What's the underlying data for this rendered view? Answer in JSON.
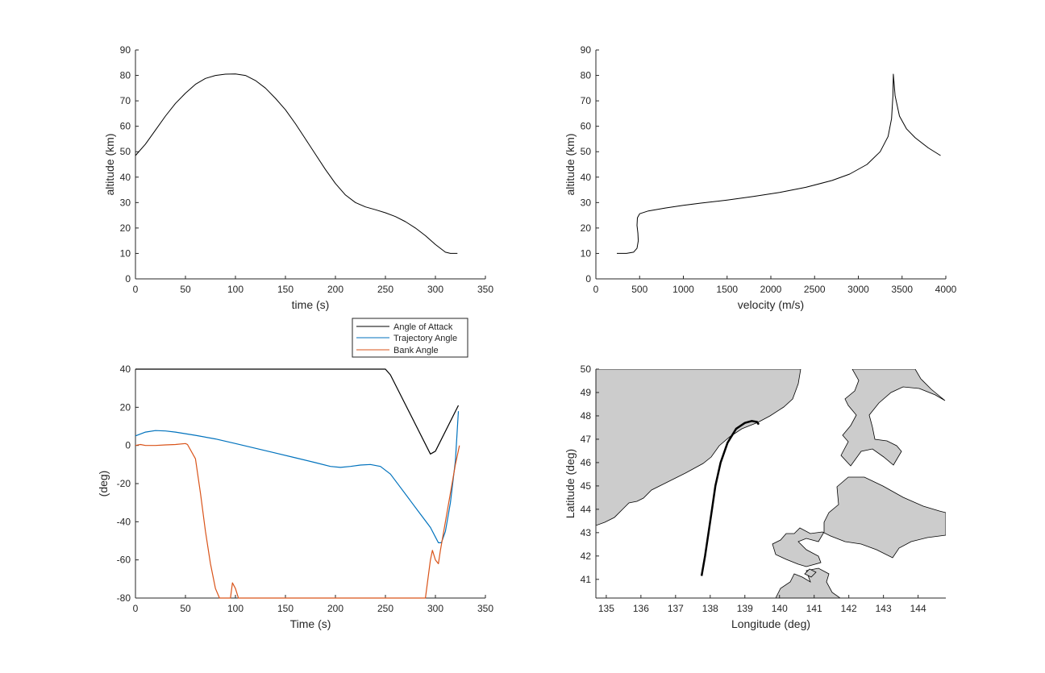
{
  "chart_data": [
    {
      "type": "line",
      "xlabel": "time (s)",
      "ylabel": "altitude (km)",
      "xlim": [
        0,
        350
      ],
      "ylim": [
        0,
        90
      ],
      "xticks": [
        "0",
        "50",
        "100",
        "150",
        "200",
        "250",
        "300",
        "350"
      ],
      "yticks": [
        "0",
        "10",
        "20",
        "30",
        "40",
        "50",
        "60",
        "70",
        "80",
        "90"
      ],
      "series": [
        {
          "color": "#000000",
          "points": [
            [
              0,
              48.5
            ],
            [
              10,
              53
            ],
            [
              20,
              58.5
            ],
            [
              30,
              64
            ],
            [
              40,
              69
            ],
            [
              50,
              73
            ],
            [
              60,
              76.5
            ],
            [
              70,
              78.8
            ],
            [
              80,
              80
            ],
            [
              90,
              80.5
            ],
            [
              100,
              80.6
            ],
            [
              110,
              80
            ],
            [
              120,
              78
            ],
            [
              130,
              75
            ],
            [
              140,
              71
            ],
            [
              150,
              66.5
            ],
            [
              160,
              61
            ],
            [
              170,
              55
            ],
            [
              180,
              49
            ],
            [
              190,
              43
            ],
            [
              200,
              37.5
            ],
            [
              210,
              33
            ],
            [
              220,
              30
            ],
            [
              230,
              28.3
            ],
            [
              240,
              27.2
            ],
            [
              250,
              26
            ],
            [
              260,
              24.5
            ],
            [
              270,
              22.5
            ],
            [
              280,
              20
            ],
            [
              290,
              17
            ],
            [
              300,
              13.5
            ],
            [
              310,
              10.5
            ],
            [
              315,
              10
            ],
            [
              322,
              10
            ]
          ]
        }
      ]
    },
    {
      "type": "line",
      "xlabel": "velocity (m/s)",
      "ylabel": "altitude (km)",
      "xlim": [
        0,
        4000
      ],
      "ylim": [
        0,
        90
      ],
      "xticks": [
        "0",
        "500",
        "1000",
        "1500",
        "2000",
        "2500",
        "3000",
        "3500",
        "4000"
      ],
      "yticks": [
        "0",
        "10",
        "20",
        "30",
        "40",
        "50",
        "60",
        "70",
        "80",
        "90"
      ],
      "series": [
        {
          "color": "#000000",
          "points": [
            [
              240,
              10
            ],
            [
              350,
              10
            ],
            [
              430,
              10.5
            ],
            [
              470,
              12
            ],
            [
              485,
              15
            ],
            [
              480,
              18
            ],
            [
              470,
              21
            ],
            [
              475,
              24
            ],
            [
              500,
              25.6
            ],
            [
              600,
              26.7
            ],
            [
              800,
              27.9
            ],
            [
              1000,
              28.9
            ],
            [
              1200,
              29.8
            ],
            [
              1500,
              31
            ],
            [
              1800,
              32.4
            ],
            [
              2100,
              34
            ],
            [
              2400,
              36
            ],
            [
              2700,
              38.7
            ],
            [
              2900,
              41.2
            ],
            [
              3100,
              45
            ],
            [
              3250,
              50
            ],
            [
              3340,
              56
            ],
            [
              3380,
              63
            ],
            [
              3395,
              72
            ],
            [
              3400,
              80.5
            ],
            [
              3420,
              72
            ],
            [
              3470,
              64
            ],
            [
              3550,
              59
            ],
            [
              3650,
              55.5
            ],
            [
              3800,
              51.5
            ],
            [
              3940,
              48.5
            ]
          ]
        }
      ]
    },
    {
      "type": "line",
      "xlabel": "Time (s)",
      "ylabel": "(deg)",
      "xlim": [
        0,
        350
      ],
      "ylim": [
        -80,
        40
      ],
      "xticks": [
        "0",
        "50",
        "100",
        "150",
        "200",
        "250",
        "300",
        "350"
      ],
      "yticks": [
        "-80",
        "-60",
        "-40",
        "-20",
        "0",
        "20",
        "40"
      ],
      "legend": [
        "Angle of Attack",
        "Trajectory Angle",
        "Bank Angle"
      ],
      "legend_position": "above-right",
      "series": [
        {
          "name": "Angle of Attack",
          "color": "#000000",
          "points": [
            [
              0,
              40
            ],
            [
              250,
              40
            ],
            [
              255,
              37
            ],
            [
              295,
              -4.5
            ],
            [
              300,
              -3
            ],
            [
              323,
              21
            ]
          ]
        },
        {
          "name": "Trajectory Angle",
          "color": "#0072bd",
          "points": [
            [
              0,
              5
            ],
            [
              10,
              7
            ],
            [
              20,
              7.8
            ],
            [
              30,
              7.6
            ],
            [
              40,
              7
            ],
            [
              60,
              5.3
            ],
            [
              80,
              3.4
            ],
            [
              100,
              1
            ],
            [
              120,
              -1.5
            ],
            [
              140,
              -4
            ],
            [
              160,
              -6.5
            ],
            [
              180,
              -9
            ],
            [
              195,
              -11
            ],
            [
              205,
              -11.5
            ],
            [
              215,
              -11
            ],
            [
              225,
              -10.3
            ],
            [
              235,
              -10
            ],
            [
              245,
              -11
            ],
            [
              255,
              -15
            ],
            [
              265,
              -22
            ],
            [
              275,
              -29
            ],
            [
              285,
              -36
            ],
            [
              295,
              -43
            ],
            [
              300,
              -48
            ],
            [
              303,
              -51
            ],
            [
              306,
              -51
            ],
            [
              310,
              -45
            ],
            [
              315,
              -30
            ],
            [
              320,
              -8
            ],
            [
              323,
              18
            ]
          ]
        },
        {
          "name": "Bank Angle",
          "color": "#d95319",
          "points": [
            [
              0,
              0
            ],
            [
              5,
              0.5
            ],
            [
              10,
              0
            ],
            [
              20,
              0
            ],
            [
              30,
              0.3
            ],
            [
              40,
              0.5
            ],
            [
              50,
              1
            ],
            [
              52,
              0.5
            ],
            [
              60,
              -7
            ],
            [
              65,
              -25
            ],
            [
              70,
              -45
            ],
            [
              75,
              -62
            ],
            [
              80,
              -75
            ],
            [
              84,
              -80
            ],
            [
              95,
              -80
            ],
            [
              97,
              -72
            ],
            [
              100,
              -75
            ],
            [
              103,
              -80
            ],
            [
              290,
              -80
            ],
            [
              295,
              -60
            ],
            [
              297,
              -55
            ],
            [
              300,
              -60
            ],
            [
              303,
              -62
            ],
            [
              305,
              -55
            ],
            [
              310,
              -40
            ],
            [
              315,
              -25
            ],
            [
              320,
              -10
            ],
            [
              324,
              0
            ]
          ]
        }
      ]
    },
    {
      "type": "line",
      "xlabel": "Longitude (deg)",
      "ylabel": "Latitude (deg)",
      "xlim": [
        134.7,
        144.8
      ],
      "ylim": [
        40.2,
        50
      ],
      "xticks": [
        "135",
        "136",
        "137",
        "138",
        "139",
        "140",
        "141",
        "142",
        "143",
        "144"
      ],
      "yticks": [
        "41",
        "42",
        "43",
        "44",
        "45",
        "46",
        "47",
        "48",
        "49",
        "50"
      ],
      "land_color": "#cccccc",
      "series": [
        {
          "color": "#000000",
          "points": [
            [
              137.75,
              41.15
            ],
            [
              137.85,
              42
            ],
            [
              137.95,
              43
            ],
            [
              138.05,
              44
            ],
            [
              138.15,
              45
            ],
            [
              138.3,
              46
            ],
            [
              138.5,
              46.85
            ],
            [
              138.75,
              47.45
            ],
            [
              139.0,
              47.7
            ],
            [
              139.2,
              47.78
            ],
            [
              139.35,
              47.74
            ],
            [
              139.4,
              47.63
            ]
          ]
        }
      ]
    }
  ]
}
